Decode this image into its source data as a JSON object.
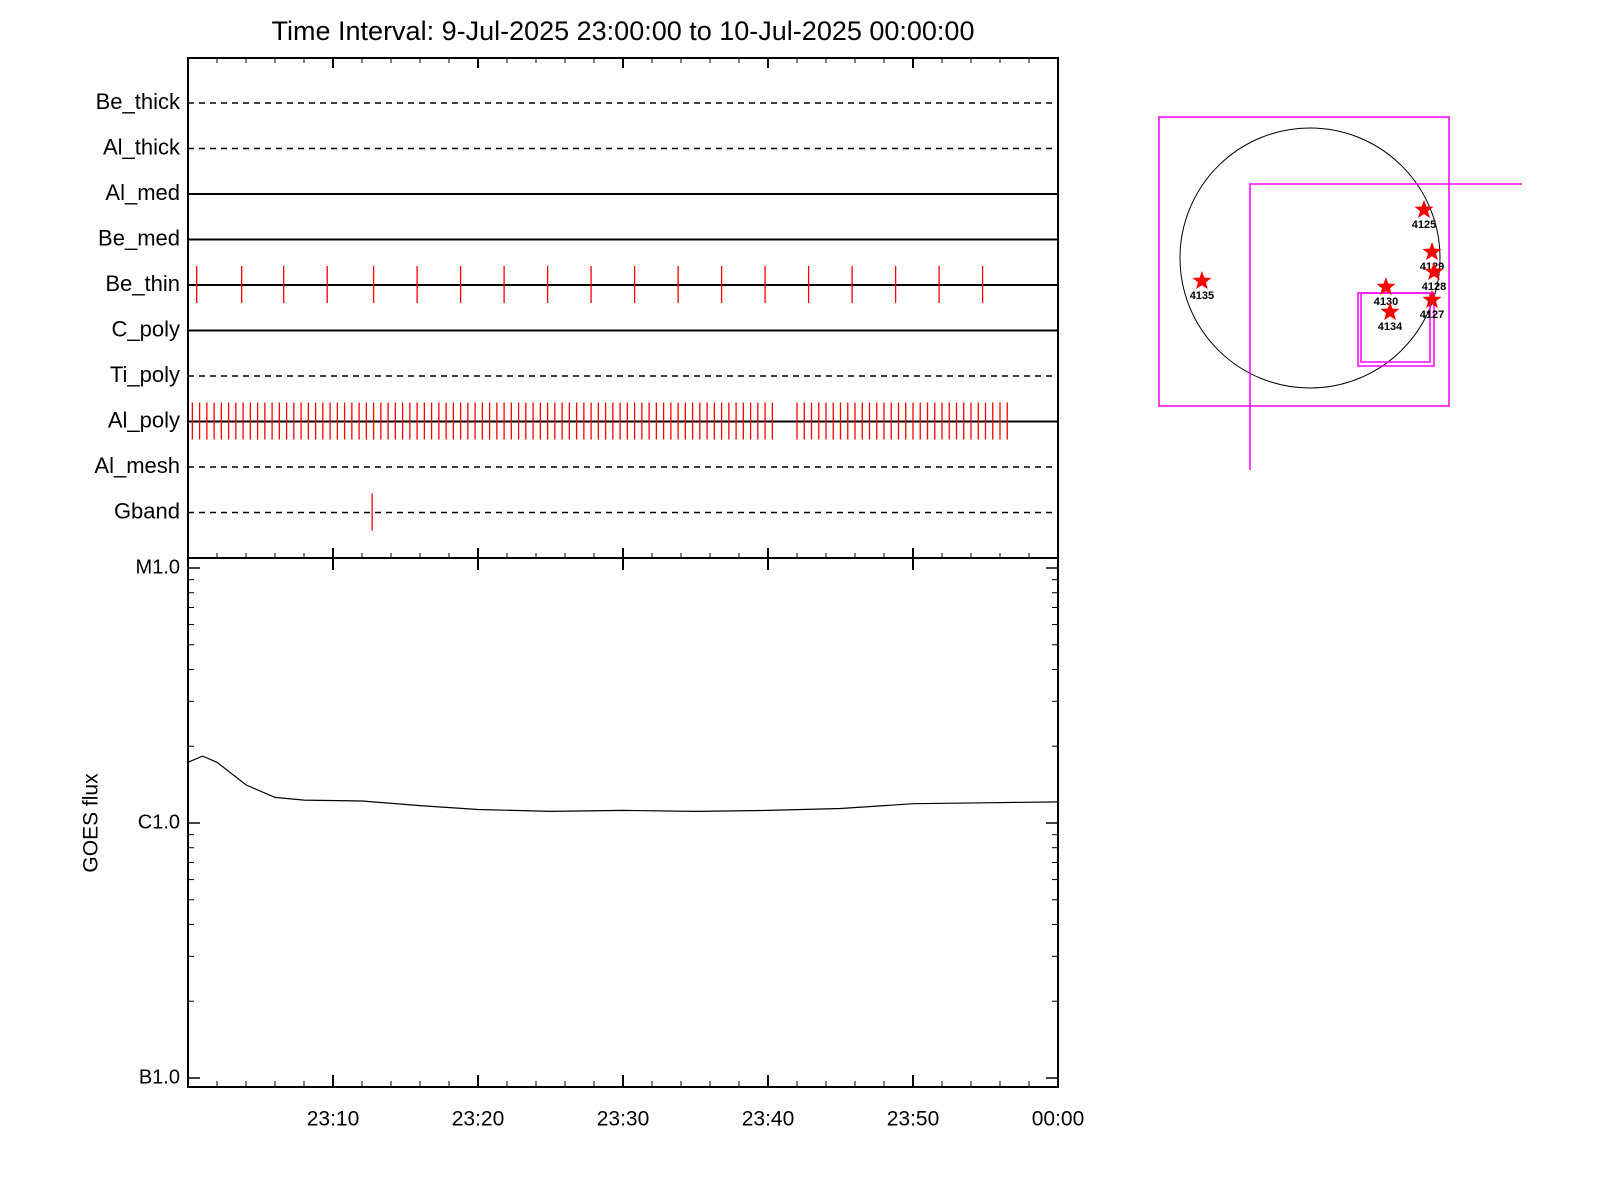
{
  "chart_data": [
    {
      "type": "timeline",
      "title": "Time Interval:  9-Jul-2025 23:00:00 to 10-Jul-2025 00:00:00",
      "categories": [
        "Be_thick",
        "Al_thick",
        "Al_med",
        "Be_med",
        "Be_thin",
        "C_poly",
        "Ti_poly",
        "Al_poly",
        "Al_mesh",
        "Gband"
      ],
      "line_styles": [
        "dashed",
        "dashed",
        "solid",
        "solid",
        "solid",
        "solid",
        "dashed",
        "solid",
        "dashed",
        "dashed"
      ],
      "event_color": "#ff0000",
      "events": [
        [],
        [],
        [],
        [],
        [
          0.6,
          3.7,
          6.6,
          9.6,
          12.8,
          15.8,
          18.8,
          21.8,
          24.8,
          27.8,
          30.8,
          33.8,
          36.8,
          39.8,
          42.8,
          45.8,
          48.8,
          51.8,
          54.8
        ],
        [],
        [],
        [
          0.3,
          0.8,
          1.3,
          1.8,
          2.3,
          2.8,
          3.3,
          3.8,
          4.3,
          4.8,
          5.3,
          5.8,
          6.3,
          6.8,
          7.3,
          7.8,
          8.3,
          8.8,
          9.3,
          9.8,
          10.3,
          10.8,
          11.3,
          11.8,
          12.3,
          12.8,
          13.3,
          13.8,
          14.3,
          14.8,
          15.3,
          15.8,
          16.3,
          16.8,
          17.3,
          17.8,
          18.3,
          18.8,
          19.3,
          19.8,
          20.3,
          20.8,
          21.3,
          21.8,
          22.3,
          22.8,
          23.3,
          23.8,
          24.3,
          24.8,
          25.3,
          25.8,
          26.3,
          26.8,
          27.3,
          27.8,
          28.3,
          28.8,
          29.3,
          29.8,
          30.3,
          30.8,
          31.3,
          31.8,
          32.3,
          32.8,
          33.3,
          33.8,
          34.3,
          34.8,
          35.3,
          35.8,
          36.3,
          36.8,
          37.3,
          37.8,
          38.3,
          38.8,
          39.3,
          39.8,
          40.3,
          42.0,
          42.5,
          43.0,
          43.5,
          44.0,
          44.5,
          45.0,
          45.5,
          46.0,
          46.5,
          47.0,
          47.5,
          48.0,
          48.5,
          49.0,
          49.5,
          50.0,
          50.5,
          51.0,
          51.5,
          52.0,
          52.5,
          53.0,
          53.5,
          54.0,
          54.5,
          55.0,
          55.5,
          56.0,
          56.5
        ],
        [],
        [
          12.7
        ]
      ],
      "xlim": [
        0,
        60
      ]
    },
    {
      "type": "line",
      "ylabel": "GOES flux",
      "x": [
        0,
        1,
        2,
        4,
        6,
        8,
        12,
        16,
        20,
        25,
        30,
        35,
        40,
        45,
        50,
        55,
        60
      ],
      "values": [
        1.73e-06,
        1.83e-06,
        1.73e-06,
        1.41e-06,
        1.26e-06,
        1.23e-06,
        1.22e-06,
        1.17e-06,
        1.13e-06,
        1.11e-06,
        1.12e-06,
        1.11e-06,
        1.12e-06,
        1.14e-06,
        1.19e-06,
        1.2e-06,
        1.21e-06
      ],
      "color": "#000000",
      "log_scale": true,
      "xlim": [
        0,
        60
      ],
      "xticks": [
        {
          "value": 10,
          "label": "23:10"
        },
        {
          "value": 20,
          "label": "23:20"
        },
        {
          "value": 30,
          "label": "23:30"
        },
        {
          "value": 40,
          "label": "23:40"
        },
        {
          "value": 50,
          "label": "23:50"
        },
        {
          "value": 60,
          "label": "00:00"
        }
      ],
      "ylim": [
        1e-07,
        1e-05
      ],
      "yticks": [
        {
          "value": 1e-07,
          "label": "B1.0"
        },
        {
          "value": 1e-06,
          "label": "C1.0"
        },
        {
          "value": 1e-05,
          "label": "M1.0"
        }
      ]
    },
    {
      "type": "map",
      "color": "#ff0000",
      "labels": [
        "4125",
        "4129",
        "4128",
        "4130",
        "4127",
        "4134",
        "4135"
      ],
      "x": [
        842,
        901,
        916,
        561,
        901,
        591,
        -798
      ],
      "y": [
        355,
        44,
        -103,
        -214,
        -310,
        -399,
        -170
      ]
    }
  ]
}
